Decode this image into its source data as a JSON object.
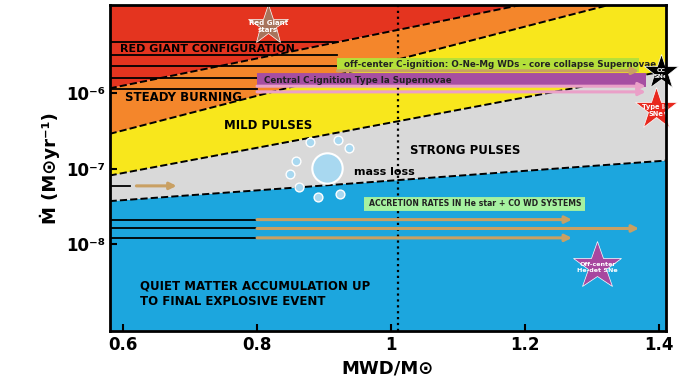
{
  "chart_data": {
    "type": "regions",
    "xlabel": "MWD/M⊙",
    "ylabel": "Ṁ (M⊙yr⁻¹)",
    "log": "y",
    "grid": false,
    "xlim": [
      0.58,
      1.41
    ],
    "ylim": [
      7e-10,
      1.5e-05
    ],
    "xticks": [
      0.6,
      0.8,
      1,
      1.2,
      1.4
    ],
    "yticks": [
      {
        "value": 1e-08,
        "label": "10⁻⁸"
      },
      {
        "value": 1e-07,
        "label": "10⁻⁷"
      },
      {
        "value": 1e-06,
        "label": "10⁻⁶"
      }
    ],
    "boundaries": {
      "color": "#000000",
      "line_style": "dashed",
      "lines": [
        {
          "x": [
            0.58,
            1.41
          ],
          "y": [
            3.7e-08,
            1.28e-07
          ]
        },
        {
          "x": [
            0.58,
            1.41
          ],
          "y": [
            8.1e-08,
            2e-06
          ]
        },
        {
          "x": [
            0.58,
            1.41
          ],
          "y": [
            2.9e-07,
            2.36e-05
          ]
        },
        {
          "x": [
            0.58,
            1.41
          ],
          "y": [
            1.17e-06,
            3.7e-05
          ]
        }
      ]
    },
    "regions": [
      {
        "label": "QUIET MATTER ACCUMULATION UP\nTO FINAL EXPLOSIVE EVENT",
        "color": "#1ca6de"
      },
      {
        "label": "STRONG PULSES",
        "color": "#d9d9d9"
      },
      {
        "label": "MILD PULSES",
        "color": "#f8e71c"
      },
      {
        "label": "STEADY BURNING",
        "color": "#f4862b"
      },
      {
        "label": "RED GIANT CONFIGURATION",
        "color": "#e4341f"
      }
    ],
    "vline": {
      "x": 1.01,
      "line_style": "dotted",
      "color": "#000000"
    },
    "annotations": [
      "mass loss"
    ],
    "bars": [
      {
        "label": "off-center C-ignition: O-Ne-Mg WDs - core collapse Supernovae",
        "x": [
          0.92,
          1.37
        ],
        "y": 2.4e-06,
        "color": "#b5e03a"
      },
      {
        "label": "Central C-ignition Type Ia Supernovae",
        "x": [
          0.8,
          1.38
        ],
        "y": 1.5e-06,
        "color": "#a64ea2"
      },
      {
        "label": "ACCRETION RATES IN He star + CO WD SYSTEMS",
        "x": [
          0.96,
          1.29
        ],
        "y": 3.4e-08,
        "color": "#a6f2a0"
      }
    ],
    "lines": [
      {
        "x": [
          0.58,
          0.92
        ],
        "y": 4.8e-06,
        "color": "#000000"
      },
      {
        "x": [
          0.58,
          0.92
        ],
        "y": 3.2e-06,
        "color": "#000000"
      },
      {
        "x": [
          0.58,
          0.92
        ],
        "y": 2.3e-06,
        "color": "#000000"
      },
      {
        "x": [
          0.58,
          0.8
        ],
        "y": 1.6e-06,
        "color": "#000000"
      },
      {
        "x": [
          0.58,
          0.8
        ],
        "y": 1.15e-06,
        "color": "#000000"
      },
      {
        "x": [
          0.58,
          0.61
        ],
        "y": 5.9e-08,
        "color": "#000000"
      },
      {
        "x": [
          0.58,
          0.8
        ],
        "y": 2.1e-08,
        "color": "#000000"
      },
      {
        "x": [
          0.58,
          0.8
        ],
        "y": 1.6e-08,
        "color": "#000000"
      },
      {
        "x": [
          0.58,
          0.8
        ],
        "y": 1.2e-08,
        "color": "#000000"
      }
    ],
    "arrows": [
      {
        "x": [
          0.92,
          1.37
        ],
        "y": 2e-06,
        "color": "#c9a063"
      },
      {
        "x": [
          0.8,
          1.38
        ],
        "y": 1.25e-06,
        "color": "#eaa0c8"
      },
      {
        "x": [
          0.8,
          1.38
        ],
        "y": 1.05e-06,
        "color": "#eaa0c8"
      },
      {
        "x": [
          0.62,
          0.68
        ],
        "y": 5.9e-08,
        "color": "#c9a063"
      },
      {
        "x": [
          0.8,
          1.27
        ],
        "y": 2.1e-08,
        "color": "#c9a063"
      },
      {
        "x": [
          0.8,
          1.37
        ],
        "y": 1.6e-08,
        "color": "#c9a063"
      },
      {
        "x": [
          0.8,
          1.27
        ],
        "y": 1.2e-08,
        "color": "#c9a063"
      }
    ],
    "stars": [
      {
        "label": "Red Giant\nstars",
        "color": "#a8745c",
        "marker": "star"
      },
      {
        "label": "CC\nSNe",
        "color": "#000000",
        "marker": "star"
      },
      {
        "label": "Type Ia\nSNe",
        "color": "#e8281e",
        "marker": "star"
      },
      {
        "label": "Off-center\nHe-det SNe",
        "color": "#a8479f",
        "marker": "star"
      }
    ]
  }
}
